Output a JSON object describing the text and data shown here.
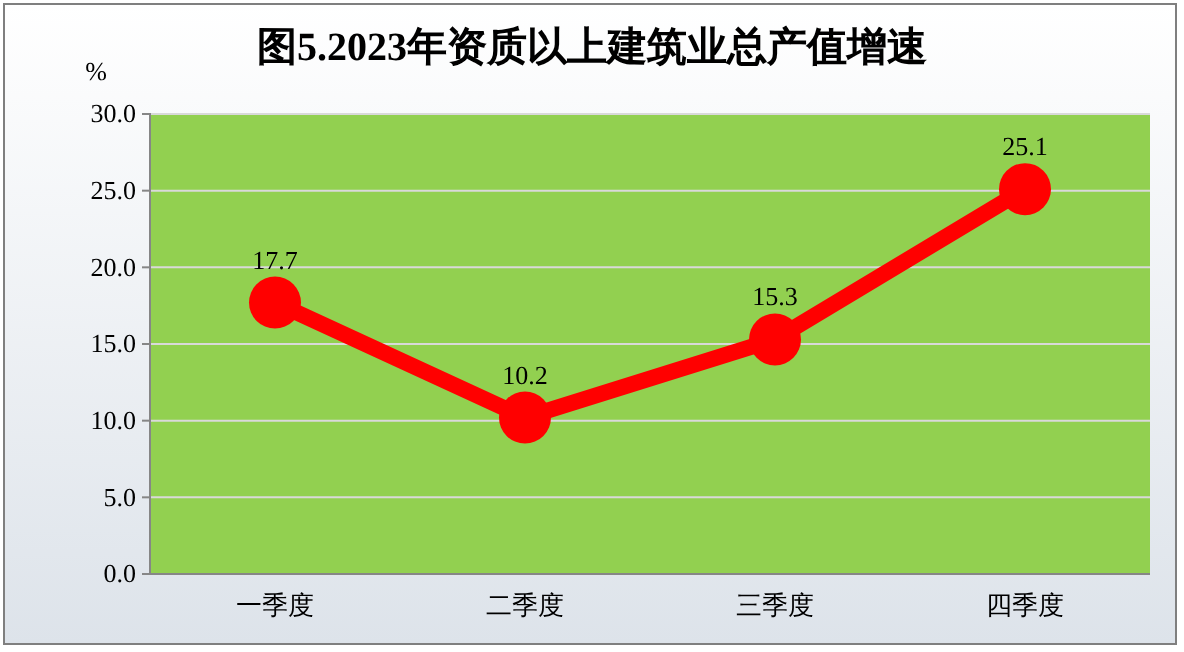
{
  "chart_data": {
    "type": "line",
    "title": "图5.2023年资质以上建筑业总产值增速",
    "ylabel": "%",
    "categories": [
      "一季度",
      "二季度",
      "三季度",
      "四季度"
    ],
    "series": [
      {
        "color": "#ff0000",
        "values": [
          17.7,
          10.2,
          15.3,
          25.1
        ]
      }
    ],
    "ylim": [
      0,
      30
    ],
    "yticks": [
      {
        "value": 0,
        "label": "0.0"
      },
      {
        "value": 5,
        "label": "5.0"
      },
      {
        "value": 10,
        "label": "10.0"
      },
      {
        "value": 15,
        "label": "15.0"
      },
      {
        "value": 20,
        "label": "20.0"
      },
      {
        "value": 25,
        "label": "25.0"
      },
      {
        "value": 30,
        "label": "30.0"
      }
    ],
    "grid": "y",
    "marker": "circle",
    "line_style": "solid",
    "data_labels": true
  }
}
